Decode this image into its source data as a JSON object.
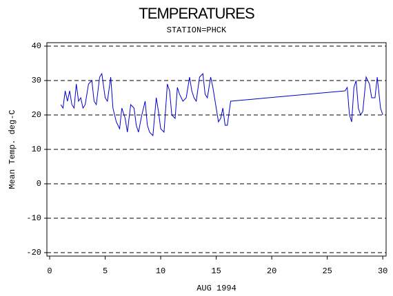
{
  "chart_data": {
    "type": "line",
    "title": "TEMPERATURES",
    "subtitle": "STATION=PHCK",
    "x_label": "AUG 1994",
    "y_label": "Mean Temp. deg-C",
    "x": [
      1,
      1.2,
      1.4,
      1.6,
      1.8,
      2,
      2.2,
      2.4,
      2.6,
      2.8,
      3,
      3.2,
      3.5,
      3.8,
      4,
      4.2,
      4.5,
      4.7,
      5,
      5.2,
      5.5,
      5.7,
      6,
      6.3,
      6.5,
      6.8,
      7,
      7.3,
      7.6,
      7.8,
      8,
      8.3,
      8.6,
      8.8,
      9,
      9.3,
      9.6,
      9.8,
      10,
      10.3,
      10.6,
      10.8,
      11,
      11.3,
      11.5,
      11.7,
      12,
      12.3,
      12.6,
      12.8,
      13,
      13.2,
      13.5,
      13.8,
      14,
      14.2,
      14.5,
      14.7,
      15,
      15.2,
      15.4,
      15.6,
      15.8,
      16,
      16.3,
      26.6,
      26.8,
      27,
      27.2,
      27.4,
      27.6,
      27.8,
      28,
      28.2,
      28.5,
      28.8,
      29,
      29.3,
      29.5,
      29.8,
      30
    ],
    "series": [
      {
        "color": "#0000cc",
        "values": [
          23,
          22,
          27,
          24,
          27,
          23,
          22,
          29,
          24,
          25,
          22,
          23,
          29,
          30,
          24,
          23,
          31,
          32,
          25,
          24,
          31,
          22,
          18,
          16,
          22,
          19,
          15,
          23,
          22,
          17,
          15,
          20,
          24,
          17,
          15,
          14,
          25,
          21,
          16,
          15,
          29,
          27,
          20,
          19,
          28,
          26,
          24,
          25,
          31,
          27,
          25,
          24,
          31,
          32,
          26,
          25,
          31,
          28,
          22,
          18,
          19,
          22,
          17,
          17,
          24,
          27,
          28,
          20,
          18,
          28,
          30,
          22,
          20,
          21,
          31,
          29,
          25,
          25,
          31,
          22,
          20
        ]
      }
    ],
    "xlim": [
      -0.25,
      30.3
    ],
    "xticks": [
      0,
      5,
      10,
      15,
      20,
      25,
      30
    ],
    "ylim": [
      -21,
      41
    ],
    "yticks": [
      -20,
      -10,
      0,
      10,
      20,
      30,
      40
    ],
    "grid": true
  }
}
